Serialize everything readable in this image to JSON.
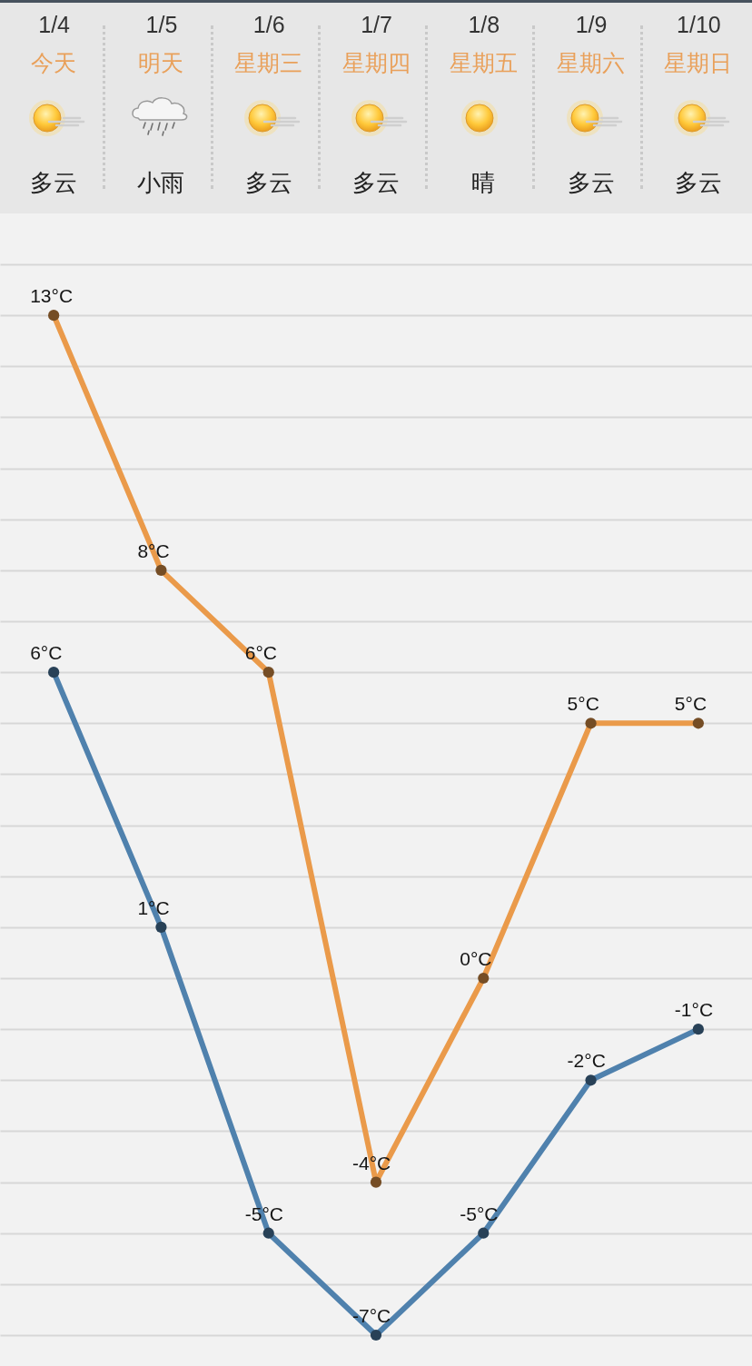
{
  "chart_data": {
    "type": "line",
    "categories": [
      "1/4",
      "1/5",
      "1/6",
      "1/7",
      "1/8",
      "1/9",
      "1/10"
    ],
    "series": [
      {
        "color": "#ea9a4a",
        "values": [
          13,
          8,
          6,
          -4,
          0,
          5,
          5
        ],
        "value_labels": [
          "13°C",
          "8°C",
          "6°C",
          "-4°C",
          "0°C",
          "5°C",
          "5°C"
        ]
      },
      {
        "color": "#4f81ad",
        "values": [
          6,
          1,
          -5,
          -7,
          -5,
          -2,
          -1
        ],
        "value_labels": [
          "6°C",
          "1°C",
          "-5°C",
          "-7°C",
          "-5°C",
          "-2°C",
          "-1°C"
        ]
      }
    ],
    "ylim": [
      -7,
      14
    ],
    "yticks": [
      {
        "value": -7,
        "label": null
      },
      {
        "value": -6,
        "label": null
      },
      {
        "value": -5,
        "label": null
      },
      {
        "value": -4,
        "label": null
      },
      {
        "value": -3,
        "label": null
      },
      {
        "value": -2,
        "label": null
      },
      {
        "value": -1,
        "label": null
      },
      {
        "value": 0,
        "label": null
      },
      {
        "value": 1,
        "label": null
      },
      {
        "value": 2,
        "label": null
      },
      {
        "value": 3,
        "label": null
      },
      {
        "value": 4,
        "label": null
      },
      {
        "value": 5,
        "label": null
      },
      {
        "value": 6,
        "label": null
      },
      {
        "value": 7,
        "label": null
      },
      {
        "value": 8,
        "label": null
      },
      {
        "value": 9,
        "label": null
      },
      {
        "value": 10,
        "label": null
      },
      {
        "value": 11,
        "label": null
      },
      {
        "value": 12,
        "label": null
      },
      {
        "value": 13,
        "label": null
      },
      {
        "value": 14,
        "label": null
      }
    ],
    "grid": "y",
    "tick_labels": "x",
    "marker": "circle",
    "line_style": "solid",
    "annotations": [
      "今天",
      "明天",
      "星期三",
      "星期四",
      "星期五",
      "星期六",
      "星期日",
      "多云",
      "小雨",
      "多云",
      "多云",
      "晴",
      "多云",
      "多云"
    ]
  }
}
